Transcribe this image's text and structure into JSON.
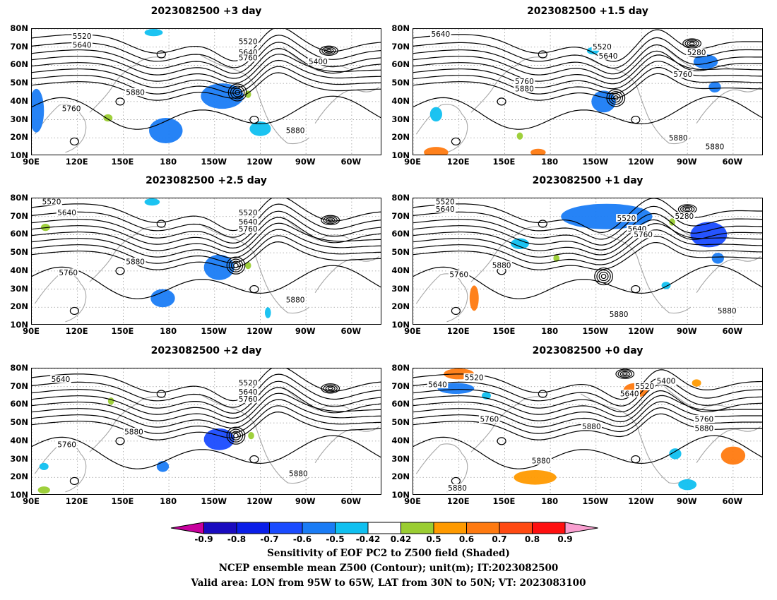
{
  "chart_data": [
    {
      "type": "heatmap",
      "title": "2023082500 +3 day",
      "xticks": [
        "90E",
        "120E",
        "150E",
        "180",
        "150W",
        "120W",
        "90W",
        "60W"
      ],
      "yticks": [
        "80N",
        "70N",
        "60N",
        "50N",
        "40N",
        "30N",
        "20N",
        "10N"
      ],
      "xlim": [
        90,
        320
      ],
      "ylim": [
        10,
        80
      ],
      "grid": true,
      "contour_labels": [
        {
          "text": "5520",
          "lon": 123,
          "lat": 76
        },
        {
          "text": "5640",
          "lon": 123,
          "lat": 71
        },
        {
          "text": "5520",
          "lon": 232,
          "lat": 73
        },
        {
          "text": "5640",
          "lon": 232,
          "lat": 67
        },
        {
          "text": "5760",
          "lon": 232,
          "lat": 64
        },
        {
          "text": "5400",
          "lon": 278,
          "lat": 62
        },
        {
          "text": "5880",
          "lon": 158,
          "lat": 45
        },
        {
          "text": "5760",
          "lon": 116,
          "lat": 36
        },
        {
          "text": "5880",
          "lon": 263,
          "lat": 24
        }
      ],
      "lows": [
        {
          "lon": 225,
          "lat": 45
        },
        {
          "lon": 285,
          "lat": 68
        }
      ],
      "shading": [
        {
          "lon": 215,
          "lat": 43,
          "rx": 14,
          "ry": 7,
          "value": -0.6
        },
        {
          "lon": 178,
          "lat": 24,
          "rx": 11,
          "ry": 7,
          "value": -0.55
        },
        {
          "lon": 93,
          "lat": 35,
          "rx": 5,
          "ry": 12,
          "value": -0.6
        },
        {
          "lon": 170,
          "lat": 78,
          "rx": 6,
          "ry": 2,
          "value": -0.5
        },
        {
          "lon": 240,
          "lat": 25,
          "rx": 7,
          "ry": 4,
          "value": -0.5
        },
        {
          "lon": 140,
          "lat": 31,
          "rx": 3,
          "ry": 2,
          "value": 0.45
        },
        {
          "lon": 232,
          "lat": 44,
          "rx": 2,
          "ry": 2,
          "value": 0.45
        }
      ]
    },
    {
      "type": "heatmap",
      "title": "2023082500 +1.5 day",
      "xticks": [
        "90E",
        "120E",
        "150E",
        "180",
        "150W",
        "120W",
        "90W",
        "60W"
      ],
      "yticks": [
        "80N",
        "70N",
        "60N",
        "50N",
        "40N",
        "30N",
        "20N",
        "10N"
      ],
      "xlim": [
        90,
        320
      ],
      "ylim": [
        10,
        80
      ],
      "grid": true,
      "contour_labels": [
        {
          "text": "5640",
          "lon": 108,
          "lat": 77
        },
        {
          "text": "5520",
          "lon": 214,
          "lat": 70
        },
        {
          "text": "5640",
          "lon": 218,
          "lat": 65
        },
        {
          "text": "5280",
          "lon": 276,
          "lat": 67
        },
        {
          "text": "5760",
          "lon": 163,
          "lat": 51
        },
        {
          "text": "5880",
          "lon": 163,
          "lat": 47
        },
        {
          "text": "5760",
          "lon": 267,
          "lat": 55
        },
        {
          "text": "5880",
          "lon": 264,
          "lat": 20
        },
        {
          "text": "5880",
          "lon": 288,
          "lat": 15
        }
      ],
      "lows": [
        {
          "lon": 223,
          "lat": 42
        },
        {
          "lon": 273,
          "lat": 72
        }
      ],
      "shading": [
        {
          "lon": 215,
          "lat": 40,
          "rx": 8,
          "ry": 6,
          "value": -0.6
        },
        {
          "lon": 282,
          "lat": 62,
          "rx": 8,
          "ry": 4,
          "value": -0.6
        },
        {
          "lon": 105,
          "lat": 33,
          "rx": 4,
          "ry": 4,
          "value": -0.5
        },
        {
          "lon": 288,
          "lat": 48,
          "rx": 4,
          "ry": 3,
          "value": -0.6
        },
        {
          "lon": 208,
          "lat": 68,
          "rx": 4,
          "ry": 2,
          "value": -0.5
        },
        {
          "lon": 105,
          "lat": 12,
          "rx": 8,
          "ry": 3,
          "value": 0.6
        },
        {
          "lon": 172,
          "lat": 12,
          "rx": 5,
          "ry": 2,
          "value": 0.6
        },
        {
          "lon": 160,
          "lat": 21,
          "rx": 2,
          "ry": 2,
          "value": 0.45
        }
      ]
    },
    {
      "type": "heatmap",
      "title": "2023082500 +2.5 day",
      "xticks": [
        "90E",
        "120E",
        "150E",
        "180",
        "150W",
        "120W",
        "90W",
        "60W"
      ],
      "yticks": [
        "80N",
        "70N",
        "60N",
        "50N",
        "40N",
        "30N",
        "20N",
        "10N"
      ],
      "xlim": [
        90,
        320
      ],
      "ylim": [
        10,
        80
      ],
      "grid": true,
      "contour_labels": [
        {
          "text": "5520",
          "lon": 103,
          "lat": 78
        },
        {
          "text": "5640",
          "lon": 113,
          "lat": 72
        },
        {
          "text": "5520",
          "lon": 232,
          "lat": 72
        },
        {
          "text": "5640",
          "lon": 232,
          "lat": 67
        },
        {
          "text": "5760",
          "lon": 232,
          "lat": 63
        },
        {
          "text": "5880",
          "lon": 158,
          "lat": 45
        },
        {
          "text": "5760",
          "lon": 114,
          "lat": 39
        },
        {
          "text": "5880",
          "lon": 263,
          "lat": 24
        }
      ],
      "lows": [
        {
          "lon": 224,
          "lat": 43
        },
        {
          "lon": 286,
          "lat": 68
        }
      ],
      "shading": [
        {
          "lon": 213,
          "lat": 42,
          "rx": 10,
          "ry": 7,
          "value": -0.6
        },
        {
          "lon": 176,
          "lat": 25,
          "rx": 8,
          "ry": 5,
          "value": -0.55
        },
        {
          "lon": 169,
          "lat": 78,
          "rx": 5,
          "ry": 2,
          "value": -0.5
        },
        {
          "lon": 245,
          "lat": 17,
          "rx": 2,
          "ry": 3,
          "value": -0.5
        },
        {
          "lon": 99,
          "lat": 64,
          "rx": 3,
          "ry": 2,
          "value": 0.45
        },
        {
          "lon": 232,
          "lat": 43,
          "rx": 2,
          "ry": 2,
          "value": 0.45
        }
      ]
    },
    {
      "type": "heatmap",
      "title": "2023082500 +1 day",
      "xticks": [
        "90E",
        "120E",
        "150E",
        "180",
        "150W",
        "120W",
        "90W",
        "60W"
      ],
      "yticks": [
        "80N",
        "70N",
        "60N",
        "50N",
        "40N",
        "30N",
        "20N",
        "10N"
      ],
      "xlim": [
        90,
        320
      ],
      "ylim": [
        10,
        80
      ],
      "grid": true,
      "contour_labels": [
        {
          "text": "5520",
          "lon": 111,
          "lat": 78
        },
        {
          "text": "5640",
          "lon": 111,
          "lat": 74
        },
        {
          "text": "5520",
          "lon": 230,
          "lat": 69
        },
        {
          "text": "5640",
          "lon": 237,
          "lat": 63
        },
        {
          "text": "5760",
          "lon": 241,
          "lat": 60
        },
        {
          "text": "5280",
          "lon": 268,
          "lat": 70
        },
        {
          "text": "5880",
          "lon": 148,
          "lat": 43
        },
        {
          "text": "5760",
          "lon": 120,
          "lat": 38
        },
        {
          "text": "5880",
          "lon": 225,
          "lat": 16
        },
        {
          "text": "5880",
          "lon": 296,
          "lat": 18
        }
      ],
      "lows": [
        {
          "lon": 215,
          "lat": 37
        },
        {
          "lon": 270,
          "lat": 74
        }
      ],
      "shading": [
        {
          "lon": 217,
          "lat": 70,
          "rx": 30,
          "ry": 7,
          "value": -0.6
        },
        {
          "lon": 284,
          "lat": 60,
          "rx": 12,
          "ry": 7,
          "value": -0.65
        },
        {
          "lon": 290,
          "lat": 47,
          "rx": 4,
          "ry": 3,
          "value": -0.6
        },
        {
          "lon": 160,
          "lat": 55,
          "rx": 6,
          "ry": 3,
          "value": -0.5
        },
        {
          "lon": 256,
          "lat": 32,
          "rx": 3,
          "ry": 2,
          "value": -0.5
        },
        {
          "lon": 130,
          "lat": 25,
          "rx": 3,
          "ry": 7,
          "value": 0.6
        },
        {
          "lon": 260,
          "lat": 67,
          "rx": 2,
          "ry": 2,
          "value": 0.45
        },
        {
          "lon": 184,
          "lat": 47,
          "rx": 2,
          "ry": 2,
          "value": 0.45
        }
      ]
    },
    {
      "type": "heatmap",
      "title": "2023082500 +2 day",
      "xticks": [
        "90E",
        "120E",
        "150E",
        "180",
        "150W",
        "120W",
        "90W",
        "60W"
      ],
      "yticks": [
        "80N",
        "70N",
        "60N",
        "50N",
        "40N",
        "30N",
        "20N",
        "10N"
      ],
      "xlim": [
        90,
        320
      ],
      "ylim": [
        10,
        80
      ],
      "grid": true,
      "contour_labels": [
        {
          "text": "5640",
          "lon": 109,
          "lat": 74
        },
        {
          "text": "5520",
          "lon": 232,
          "lat": 72
        },
        {
          "text": "5640",
          "lon": 232,
          "lat": 67
        },
        {
          "text": "5760",
          "lon": 232,
          "lat": 63
        },
        {
          "text": "5880",
          "lon": 157,
          "lat": 45
        },
        {
          "text": "5760",
          "lon": 113,
          "lat": 38
        },
        {
          "text": "5880",
          "lon": 265,
          "lat": 22
        }
      ],
      "lows": [
        {
          "lon": 224,
          "lat": 43
        },
        {
          "lon": 286,
          "lat": 69
        }
      ],
      "shading": [
        {
          "lon": 213,
          "lat": 41,
          "rx": 10,
          "ry": 6,
          "value": -0.65
        },
        {
          "lon": 176,
          "lat": 26,
          "rx": 4,
          "ry": 3,
          "value": -0.55
        },
        {
          "lon": 98,
          "lat": 26,
          "rx": 3,
          "ry": 2,
          "value": -0.5
        },
        {
          "lon": 234,
          "lat": 43,
          "rx": 2,
          "ry": 2,
          "value": 0.45
        },
        {
          "lon": 142,
          "lat": 62,
          "rx": 2,
          "ry": 2,
          "value": 0.45
        },
        {
          "lon": 98,
          "lat": 13,
          "rx": 4,
          "ry": 2,
          "value": 0.45
        }
      ]
    },
    {
      "type": "heatmap",
      "title": "2023082500 +0 day",
      "xticks": [
        "90E",
        "120E",
        "150E",
        "180",
        "150W",
        "120W",
        "90W",
        "60W"
      ],
      "yticks": [
        "80N",
        "70N",
        "60N",
        "50N",
        "40N",
        "30N",
        "20N",
        "10N"
      ],
      "xlim": [
        90,
        320
      ],
      "ylim": [
        10,
        80
      ],
      "grid": true,
      "contour_labels": [
        {
          "text": "5520",
          "lon": 130,
          "lat": 75
        },
        {
          "text": "5640",
          "lon": 106,
          "lat": 71
        },
        {
          "text": "5400",
          "lon": 256,
          "lat": 73
        },
        {
          "text": "5520",
          "lon": 242,
          "lat": 70
        },
        {
          "text": "5640",
          "lon": 232,
          "lat": 66
        },
        {
          "text": "5760",
          "lon": 140,
          "lat": 52
        },
        {
          "text": "5880",
          "lon": 207,
          "lat": 48
        },
        {
          "text": "5760",
          "lon": 281,
          "lat": 52
        },
        {
          "text": "5880",
          "lon": 281,
          "lat": 47
        },
        {
          "text": "5880",
          "lon": 174,
          "lat": 29
        },
        {
          "text": "5880",
          "lon": 119,
          "lat": 14
        }
      ],
      "lows": [
        {
          "lon": 229,
          "lat": 77
        }
      ],
      "shading": [
        {
          "lon": 120,
          "lat": 77,
          "rx": 10,
          "ry": 3,
          "value": 0.6
        },
        {
          "lon": 118,
          "lat": 69,
          "rx": 12,
          "ry": 3,
          "value": -0.6
        },
        {
          "lon": 236,
          "lat": 68,
          "rx": 8,
          "ry": 4,
          "value": 0.65
        },
        {
          "lon": 300,
          "lat": 32,
          "rx": 8,
          "ry": 5,
          "value": 0.6
        },
        {
          "lon": 170,
          "lat": 20,
          "rx": 14,
          "ry": 4,
          "value": 0.55
        },
        {
          "lon": 270,
          "lat": 16,
          "rx": 6,
          "ry": 3,
          "value": -0.5
        },
        {
          "lon": 262,
          "lat": 33,
          "rx": 4,
          "ry": 3,
          "value": -0.5
        },
        {
          "lon": 138,
          "lat": 65,
          "rx": 3,
          "ry": 2,
          "value": -0.5
        },
        {
          "lon": 276,
          "lat": 72,
          "rx": 3,
          "ry": 2,
          "value": 0.5
        }
      ]
    }
  ],
  "colorbar": {
    "ticks": [
      "-0.9",
      "-0.8",
      "-0.7",
      "-0.6",
      "-0.5",
      "-0.42",
      "0.42",
      "0.5",
      "0.6",
      "0.7",
      "0.8",
      "0.9"
    ],
    "colors": [
      "#c8009e",
      "#1a0bbf",
      "#0a1ee8",
      "#1a4bff",
      "#1a7cf5",
      "#10c0f0",
      "#ffffff",
      "#9acd32",
      "#ff9a00",
      "#ff7a10",
      "#ff4a12",
      "#ff1010",
      "#f99fd0"
    ]
  },
  "captions": {
    "line1": "Sensitivity of EOF PC2 to Z500 field (Shaded)",
    "line2": "NCEP ensemble mean Z500 (Contour); unit(m); IT:2023082500",
    "line3": "Valid area: LON from 95W to 65W, LAT from 30N to 50N; VT: 2023083100"
  }
}
